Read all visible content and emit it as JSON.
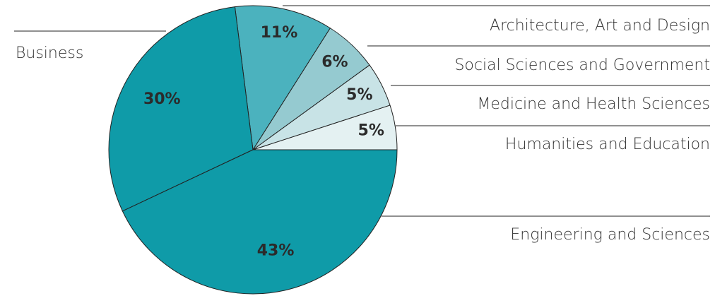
{
  "chart_data": {
    "type": "pie",
    "categories": [
      "Humanities and Education",
      "Medicine and Health Sciences",
      "Social Sciences and Government",
      "Architecture, Art and Design",
      "Business",
      "Engineering and Sciences"
    ],
    "values": [
      5,
      5,
      6,
      11,
      30,
      43
    ],
    "value_labels": [
      "5%",
      "5%",
      "6%",
      "11%",
      "30%",
      "43%"
    ],
    "colors": [
      "#e4f1f2",
      "#c8e3e6",
      "#95cad0",
      "#4bb2be",
      "#0f9ba8",
      "#0f9ba8"
    ]
  }
}
